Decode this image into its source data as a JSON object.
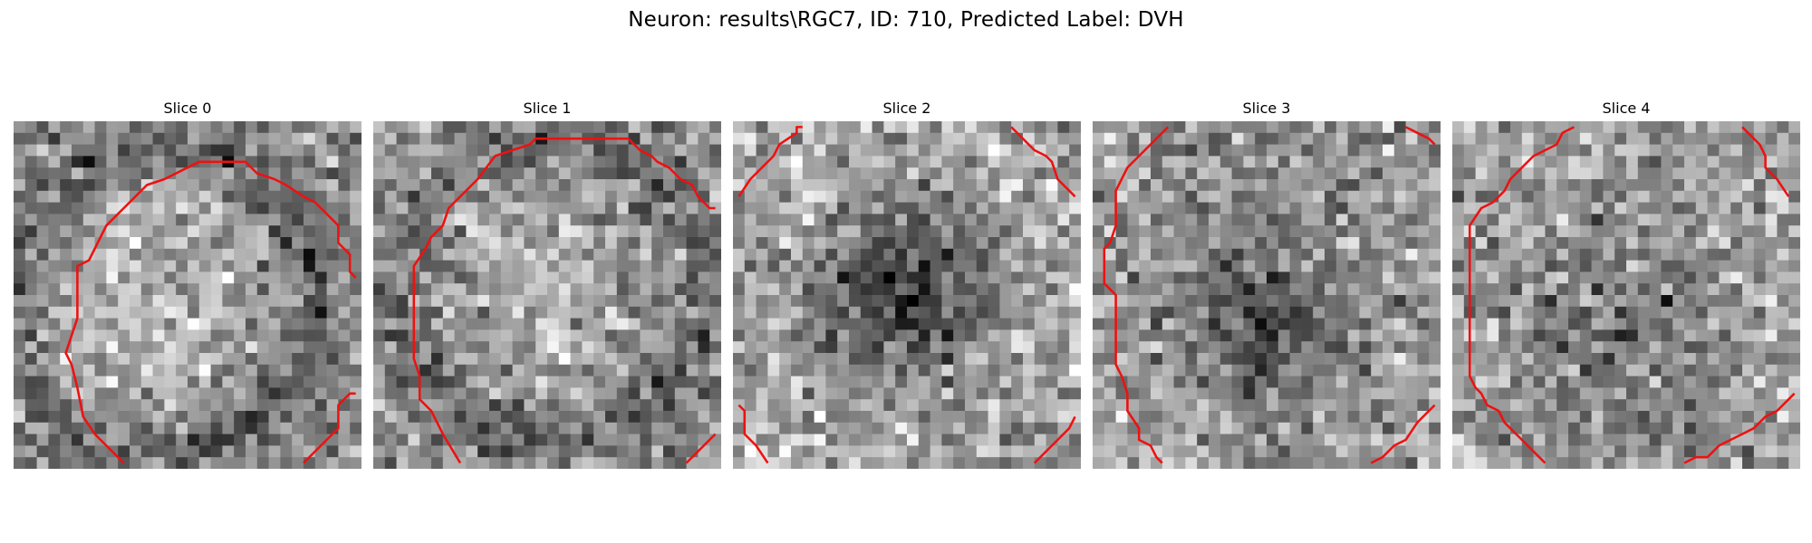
{
  "figure": {
    "title": "Neuron: results\\RGC7, ID: 710, Predicted Label: DVH"
  },
  "slices": [
    {
      "title": "Slice 0"
    },
    {
      "title": "Slice 1"
    },
    {
      "title": "Slice 2"
    },
    {
      "title": "Slice 3"
    },
    {
      "title": "Slice 4"
    }
  ],
  "style": {
    "contour_color": "#ee1111",
    "colormap": "gray"
  }
}
